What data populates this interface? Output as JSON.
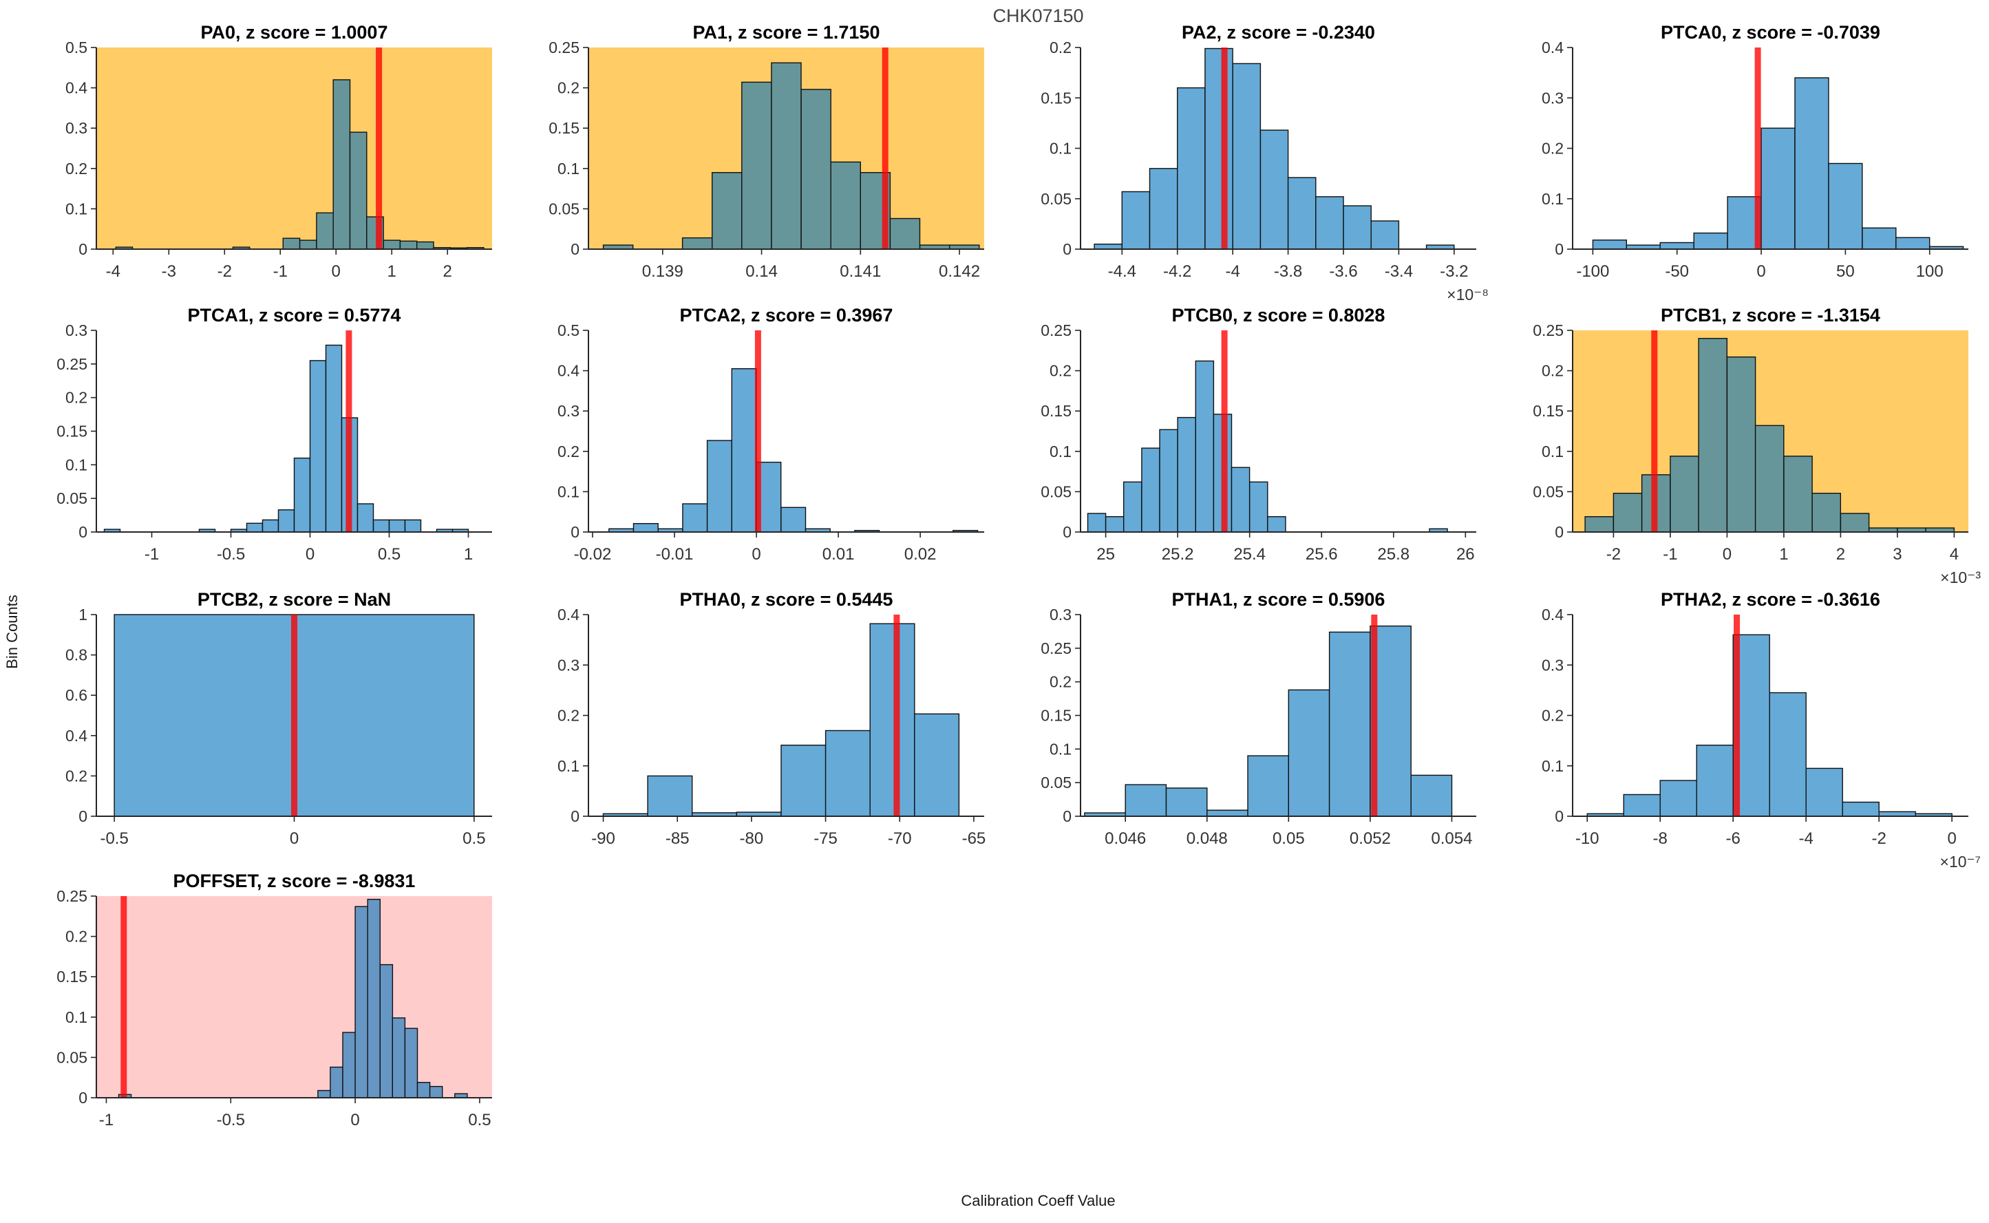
{
  "figure": {
    "title": "CHK07150",
    "xlabel": "Calibration Coeff Value",
    "ylabel": "Bin Counts"
  },
  "colors": {
    "bg_normal": "#ffffff",
    "bg_warning": "#FFCC66",
    "bg_error": "#FFCCCC",
    "bar_fill_normal": "#66AAD7",
    "bar_fill_warning": "#66969A",
    "bar_fill_error": "#6696C3",
    "bar_edge": "#111111",
    "marker": "#ff0000",
    "marker_opacity": 0.78,
    "axis": "#262626",
    "tick_label": "#333333",
    "subplot_title": "#000000",
    "figure_title": "#444444"
  },
  "chart_data": [
    {
      "type": "bar",
      "name": "PA0",
      "title": "PA0, z score = 1.0007",
      "z_score": "1.0007",
      "background": "warning",
      "xlim": [
        -4.3,
        2.8
      ],
      "ylim": [
        0,
        0.5
      ],
      "yticks": [
        0,
        0.1,
        0.2,
        0.3,
        0.4,
        0.5
      ],
      "xticks": [
        -4,
        -3,
        -2,
        -1,
        0,
        1,
        2
      ],
      "exponent": "",
      "marker_x": 0.77,
      "bin_width": 0.3,
      "bars": [
        [
          -3.95,
          0.005
        ],
        [
          -1.85,
          0.005
        ],
        [
          -0.95,
          0.027
        ],
        [
          -0.65,
          0.022
        ],
        [
          -0.35,
          0.09
        ],
        [
          -0.05,
          0.42
        ],
        [
          0.25,
          0.29
        ],
        [
          0.55,
          0.08
        ],
        [
          0.85,
          0.022
        ],
        [
          1.15,
          0.02
        ],
        [
          1.45,
          0.018
        ],
        [
          1.75,
          0.004
        ],
        [
          2.05,
          0.003
        ],
        [
          2.35,
          0.004
        ]
      ]
    },
    {
      "type": "bar",
      "name": "PA1",
      "title": "PA1, z score = 1.7150",
      "z_score": "1.7150",
      "background": "warning",
      "xlim": [
        0.13825,
        0.14225
      ],
      "ylim": [
        0,
        0.25
      ],
      "yticks": [
        0,
        0.05,
        0.1,
        0.15,
        0.2,
        0.25
      ],
      "xticks": [
        0.139,
        0.14,
        0.141,
        0.142
      ],
      "exponent": "",
      "marker_x": 0.14125,
      "bin_width": 0.0003,
      "bars": [
        [
          0.1384,
          0.005
        ],
        [
          0.1392,
          0.014
        ],
        [
          0.1395,
          0.095
        ],
        [
          0.1398,
          0.207
        ],
        [
          0.1401,
          0.231
        ],
        [
          0.1404,
          0.198
        ],
        [
          0.1407,
          0.108
        ],
        [
          0.141,
          0.095
        ],
        [
          0.1413,
          0.038
        ],
        [
          0.1416,
          0.005
        ],
        [
          0.1419,
          0.005
        ]
      ]
    },
    {
      "type": "bar",
      "name": "PA2",
      "title": "PA2, z score = -0.2340",
      "z_score": "-0.2340",
      "background": "normal",
      "xlim": [
        -4.55,
        -3.12
      ],
      "ylim": [
        0,
        0.2
      ],
      "yticks": [
        0,
        0.05,
        0.1,
        0.15,
        0.2
      ],
      "xticks": [
        -4.4,
        -4.2,
        -4,
        -3.8,
        -3.6,
        -3.4,
        -3.2
      ],
      "exponent": "×10⁻⁸",
      "marker_x": -4.03,
      "bin_width": 0.1,
      "bars": [
        [
          -4.5,
          0.005
        ],
        [
          -4.4,
          0.057
        ],
        [
          -4.3,
          0.08
        ],
        [
          -4.2,
          0.16
        ],
        [
          -4.1,
          0.199
        ],
        [
          -4.0,
          0.184
        ],
        [
          -3.9,
          0.118
        ],
        [
          -3.8,
          0.071
        ],
        [
          -3.7,
          0.052
        ],
        [
          -3.6,
          0.043
        ],
        [
          -3.5,
          0.028
        ],
        [
          -3.3,
          0.004
        ]
      ]
    },
    {
      "type": "bar",
      "name": "PTCA0",
      "title": "PTCA0, z score = -0.7039",
      "z_score": "-0.7039",
      "background": "normal",
      "xlim": [
        -112,
        123
      ],
      "ylim": [
        0,
        0.4
      ],
      "yticks": [
        0,
        0.1,
        0.2,
        0.3,
        0.4
      ],
      "xticks": [
        -100,
        -50,
        0,
        50,
        100
      ],
      "exponent": "",
      "marker_x": -2,
      "bin_width": 20,
      "bars": [
        [
          -100,
          0.018
        ],
        [
          -80,
          0.008
        ],
        [
          -60,
          0.013
        ],
        [
          -40,
          0.032
        ],
        [
          -20,
          0.104
        ],
        [
          0,
          0.24
        ],
        [
          20,
          0.34
        ],
        [
          40,
          0.17
        ],
        [
          60,
          0.042
        ],
        [
          80,
          0.023
        ],
        [
          100,
          0.005
        ]
      ]
    },
    {
      "type": "bar",
      "name": "PTCA1",
      "title": "PTCA1, z score = 0.5774",
      "z_score": "0.5774",
      "background": "normal",
      "xlim": [
        -1.35,
        1.15
      ],
      "ylim": [
        0,
        0.3
      ],
      "yticks": [
        0,
        0.05,
        0.1,
        0.15,
        0.2,
        0.25,
        0.3
      ],
      "xticks": [
        -1,
        -0.5,
        0,
        0.5,
        1
      ],
      "exponent": "",
      "marker_x": 0.245,
      "bin_width": 0.1,
      "bars": [
        [
          -1.3,
          0.004
        ],
        [
          -0.7,
          0.004
        ],
        [
          -0.5,
          0.004
        ],
        [
          -0.4,
          0.013
        ],
        [
          -0.3,
          0.018
        ],
        [
          -0.2,
          0.033
        ],
        [
          -0.1,
          0.11
        ],
        [
          0,
          0.255
        ],
        [
          0.1,
          0.278
        ],
        [
          0.2,
          0.17
        ],
        [
          0.3,
          0.042
        ],
        [
          0.4,
          0.018
        ],
        [
          0.5,
          0.018
        ],
        [
          0.6,
          0.018
        ],
        [
          0.8,
          0.004
        ],
        [
          0.9,
          0.004
        ]
      ]
    },
    {
      "type": "bar",
      "name": "PTCA2",
      "title": "PTCA2, z score = 0.3967",
      "z_score": "0.3967",
      "background": "normal",
      "xlim": [
        -0.0205,
        0.0278
      ],
      "ylim": [
        0,
        0.5
      ],
      "yticks": [
        0,
        0.1,
        0.2,
        0.3,
        0.4,
        0.5
      ],
      "xticks": [
        -0.02,
        -0.01,
        0,
        0.01,
        0.02
      ],
      "exponent": "",
      "marker_x": 0.0002,
      "bin_width": 0.003,
      "bars": [
        [
          -0.018,
          0.008
        ],
        [
          -0.015,
          0.021
        ],
        [
          -0.012,
          0.008
        ],
        [
          -0.009,
          0.07
        ],
        [
          -0.006,
          0.227
        ],
        [
          -0.003,
          0.405
        ],
        [
          0,
          0.173
        ],
        [
          0.003,
          0.061
        ],
        [
          0.006,
          0.008
        ],
        [
          0.012,
          0.004
        ],
        [
          0.024,
          0.004
        ]
      ]
    },
    {
      "type": "bar",
      "name": "PTCB0",
      "title": "PTCB0, z score = 0.8028",
      "z_score": "0.8028",
      "background": "normal",
      "xlim": [
        24.93,
        26.03
      ],
      "ylim": [
        0,
        0.25
      ],
      "yticks": [
        0,
        0.05,
        0.1,
        0.15,
        0.2,
        0.25
      ],
      "xticks": [
        25,
        25.2,
        25.4,
        25.6,
        25.8,
        26
      ],
      "exponent": "",
      "marker_x": 25.33,
      "bin_width": 0.05,
      "bars": [
        [
          24.95,
          0.023
        ],
        [
          25.0,
          0.019
        ],
        [
          25.05,
          0.062
        ],
        [
          25.1,
          0.104
        ],
        [
          25.15,
          0.127
        ],
        [
          25.2,
          0.142
        ],
        [
          25.25,
          0.212
        ],
        [
          25.3,
          0.146
        ],
        [
          25.35,
          0.08
        ],
        [
          25.4,
          0.062
        ],
        [
          25.45,
          0.019
        ],
        [
          25.9,
          0.004
        ]
      ]
    },
    {
      "type": "bar",
      "name": "PTCB1",
      "title": "PTCB1, z score = -1.3154",
      "z_score": "-1.3154",
      "background": "warning",
      "xlim": [
        -2.72,
        4.25
      ],
      "ylim": [
        0,
        0.25
      ],
      "yticks": [
        0,
        0.05,
        0.1,
        0.15,
        0.2,
        0.25
      ],
      "xticks": [
        -2,
        -1,
        0,
        1,
        2,
        3,
        4
      ],
      "exponent": "×10⁻³",
      "marker_x": -1.28,
      "bin_width": 0.5,
      "bars": [
        [
          -2.5,
          0.019
        ],
        [
          -2,
          0.048
        ],
        [
          -1.5,
          0.071
        ],
        [
          -1,
          0.094
        ],
        [
          -0.5,
          0.24
        ],
        [
          0,
          0.217
        ],
        [
          0.5,
          0.132
        ],
        [
          1,
          0.094
        ],
        [
          1.5,
          0.048
        ],
        [
          2,
          0.023
        ],
        [
          2.5,
          0.005
        ],
        [
          3,
          0.005
        ],
        [
          3.5,
          0.005
        ]
      ]
    },
    {
      "type": "bar",
      "name": "PTCB2",
      "title": "PTCB2, z score = NaN",
      "z_score": "NaN",
      "background": "normal",
      "xlim": [
        -0.55,
        0.55
      ],
      "ylim": [
        0,
        1
      ],
      "yticks": [
        0,
        0.2,
        0.4,
        0.6,
        0.8,
        1
      ],
      "xticks": [
        -0.5,
        0,
        0.5
      ],
      "exponent": "",
      "marker_x": 0,
      "bin_width": 1,
      "bars": [
        [
          -0.5,
          1
        ]
      ]
    },
    {
      "type": "bar",
      "name": "PTHA0",
      "title": "PTHA0, z score = 0.5445",
      "z_score": "0.5445",
      "background": "normal",
      "xlim": [
        -91,
        -64.3
      ],
      "ylim": [
        0,
        0.4
      ],
      "yticks": [
        0,
        0.1,
        0.2,
        0.3,
        0.4
      ],
      "xticks": [
        -90,
        -85,
        -80,
        -75,
        -70,
        -65
      ],
      "exponent": "",
      "marker_x": -70.2,
      "bin_width": 3,
      "bars": [
        [
          -90,
          0.005
        ],
        [
          -87,
          0.08
        ],
        [
          -84,
          0.007
        ],
        [
          -81,
          0.008
        ],
        [
          -78,
          0.141
        ],
        [
          -75,
          0.17
        ],
        [
          -72,
          0.382
        ],
        [
          -69,
          0.203
        ]
      ]
    },
    {
      "type": "bar",
      "name": "PTHA1",
      "title": "PTHA1, z score = 0.5906",
      "z_score": "0.5906",
      "background": "normal",
      "xlim": [
        0.0449,
        0.0546
      ],
      "ylim": [
        0,
        0.3
      ],
      "yticks": [
        0,
        0.05,
        0.1,
        0.15,
        0.2,
        0.25,
        0.3
      ],
      "xticks": [
        0.046,
        0.048,
        0.05,
        0.052,
        0.054
      ],
      "exponent": "",
      "marker_x": 0.0521,
      "bin_width": 0.001,
      "bars": [
        [
          0.045,
          0.005
        ],
        [
          0.046,
          0.047
        ],
        [
          0.047,
          0.042
        ],
        [
          0.048,
          0.009
        ],
        [
          0.049,
          0.09
        ],
        [
          0.05,
          0.188
        ],
        [
          0.051,
          0.274
        ],
        [
          0.052,
          0.283
        ],
        [
          0.053,
          0.061
        ]
      ]
    },
    {
      "type": "bar",
      "name": "PTHA2",
      "title": "PTHA2, z score = -0.3616",
      "z_score": "-0.3616",
      "background": "normal",
      "xlim": [
        -10.4,
        0.45
      ],
      "ylim": [
        0,
        0.4
      ],
      "yticks": [
        0,
        0.1,
        0.2,
        0.3,
        0.4
      ],
      "xticks": [
        -10,
        -8,
        -6,
        -4,
        -2,
        0
      ],
      "exponent": "×10⁻⁷",
      "marker_x": -5.9,
      "bin_width": 1,
      "bars": [
        [
          -10,
          0.005
        ],
        [
          -9,
          0.043
        ],
        [
          -8,
          0.071
        ],
        [
          -7,
          0.141
        ],
        [
          -6,
          0.36
        ],
        [
          -5,
          0.245
        ],
        [
          -4,
          0.095
        ],
        [
          -3,
          0.028
        ],
        [
          -2,
          0.009
        ],
        [
          -1,
          0.005
        ]
      ]
    },
    {
      "type": "bar",
      "name": "POFFSET",
      "title": "POFFSET, z score = -8.9831",
      "z_score": "-8.9831",
      "background": "error",
      "xlim": [
        -1.04,
        0.55
      ],
      "ylim": [
        0,
        0.25
      ],
      "yticks": [
        0,
        0.05,
        0.1,
        0.15,
        0.2,
        0.25
      ],
      "xticks": [
        -1,
        -0.5,
        0,
        0.5
      ],
      "exponent": "",
      "marker_x": -0.93,
      "bin_width": 0.05,
      "bars": [
        [
          -0.95,
          0.004
        ],
        [
          -0.15,
          0.009
        ],
        [
          -0.1,
          0.038
        ],
        [
          -0.05,
          0.081
        ],
        [
          0,
          0.237
        ],
        [
          0.05,
          0.246
        ],
        [
          0.1,
          0.165
        ],
        [
          0.15,
          0.099
        ],
        [
          0.2,
          0.086
        ],
        [
          0.25,
          0.019
        ],
        [
          0.3,
          0.014
        ],
        [
          0.4,
          0.005
        ]
      ]
    }
  ]
}
